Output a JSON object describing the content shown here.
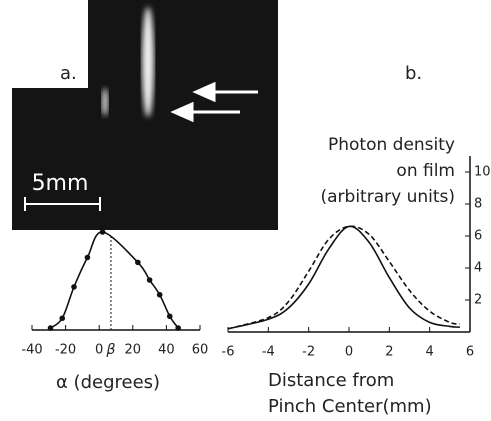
{
  "panel_labels": [
    "a.",
    "b."
  ],
  "scale_bar": "5mm",
  "chart_data": [
    {
      "type": "line",
      "x_label": "α (degrees)",
      "series": [
        {
          "color": "#111",
          "markers": true,
          "dash": false,
          "x": [
            -29,
            -22,
            -15,
            -7,
            2,
            23,
            30,
            36,
            42,
            47
          ],
          "values": [
            0.02,
            0.12,
            0.44,
            0.74,
            1.0,
            0.69,
            0.51,
            0.36,
            0.14,
            0.02
          ]
        }
      ],
      "xlim": [
        -40,
        60
      ],
      "xticks": [
        -40,
        -20,
        0,
        20,
        40,
        60
      ],
      "ylim": [
        0,
        1
      ],
      "annotation": {
        "value": 7,
        "label": "β"
      }
    },
    {
      "type": "line",
      "y_label": [
        "Photon density",
        "on film",
        "(arbitrary units)"
      ],
      "x_label": [
        "Distance from",
        "Pinch Center(mm)"
      ],
      "series": [
        {
          "color": "#111",
          "markers": false,
          "dash": false,
          "x": [
            -6,
            -4,
            -3,
            -2,
            -1,
            0,
            1,
            2,
            3,
            4,
            5,
            5.5
          ],
          "values": [
            0.2,
            0.8,
            1.5,
            3.0,
            5.2,
            6.6,
            5.6,
            3.4,
            1.5,
            0.6,
            0.35,
            0.3
          ]
        },
        {
          "color": "#111",
          "markers": false,
          "dash": true,
          "x": [
            -6,
            -4,
            -3,
            -2,
            -1,
            0,
            1,
            2,
            3,
            4,
            5,
            5.5
          ],
          "values": [
            0.2,
            0.9,
            1.9,
            3.8,
            5.8,
            6.6,
            6.1,
            4.4,
            2.6,
            1.3,
            0.6,
            0.5
          ]
        }
      ],
      "xlim": [
        -6,
        6
      ],
      "xticks": [
        -6,
        -4,
        -2,
        0,
        2,
        4,
        6
      ],
      "ylim": [
        0,
        11
      ],
      "yticks": [
        2,
        4,
        6,
        8,
        10
      ]
    }
  ]
}
